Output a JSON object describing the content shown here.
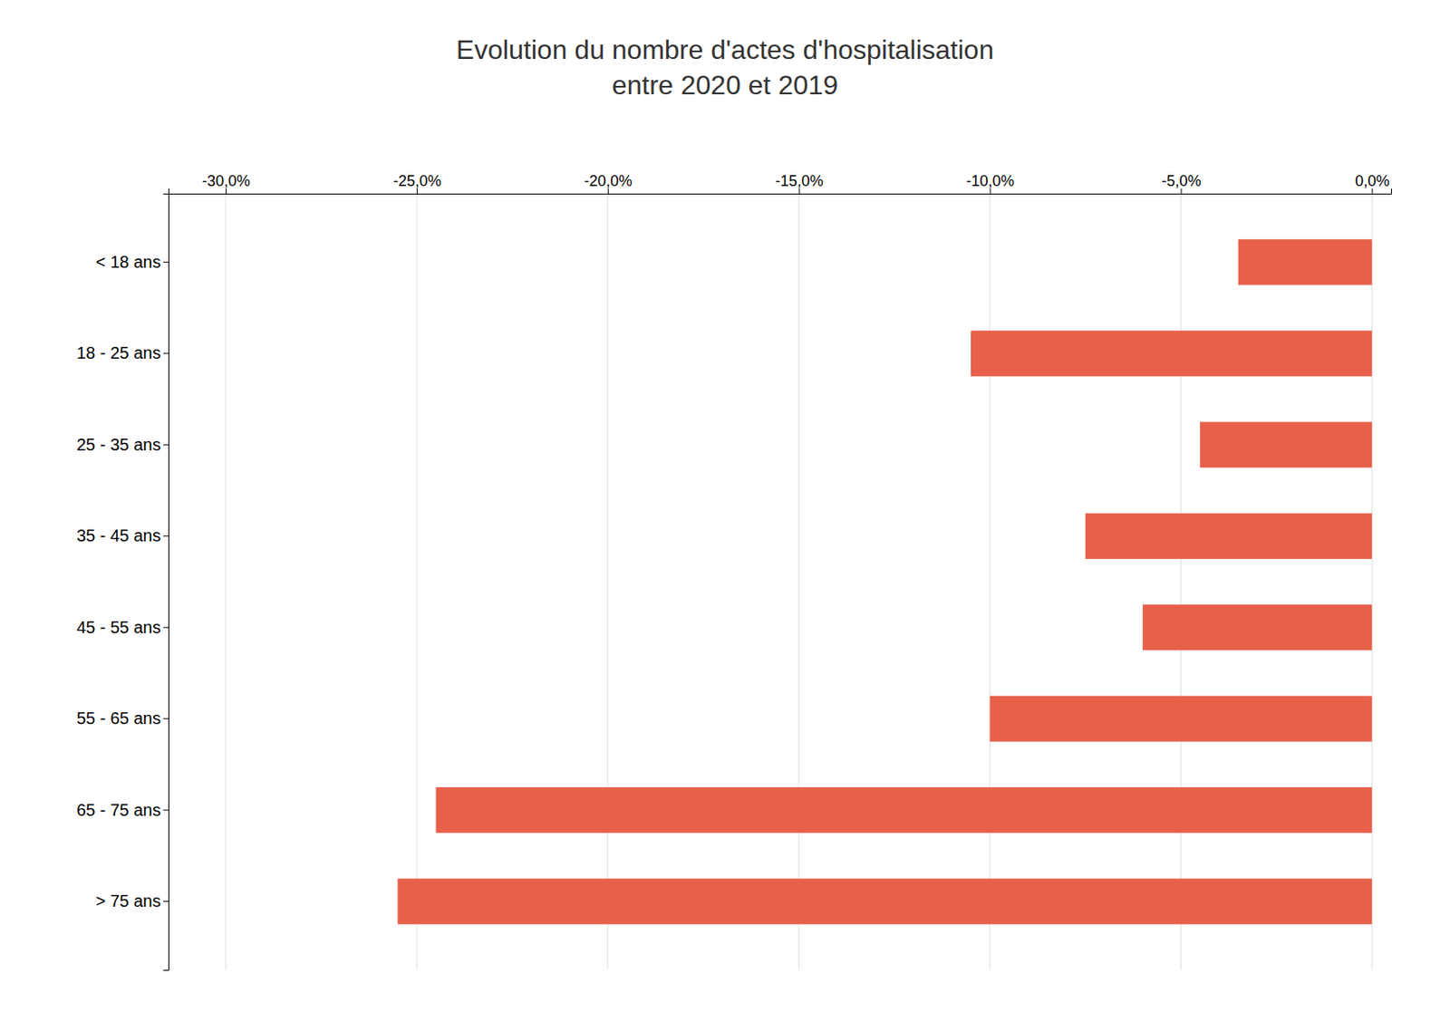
{
  "chart_data": {
    "type": "bar",
    "orientation": "horizontal",
    "title": "Evolution du nombre d'actes d'hospitalisation\nentre 2020 et 2019",
    "categories": [
      "< 18 ans",
      "18 - 25 ans",
      "25 - 35 ans",
      "35 - 45 ans",
      "45 - 55 ans",
      "55 - 65 ans",
      "65 - 75 ans",
      "> 75 ans"
    ],
    "values": [
      -3.5,
      -10.5,
      -4.5,
      -7.5,
      -6.0,
      -10.0,
      -24.5,
      -25.5
    ],
    "color": "#E8604A",
    "xlim": [
      -31.5,
      0.5
    ],
    "xticks": [
      {
        "value": -30,
        "label": "-30,0%"
      },
      {
        "value": -25,
        "label": "-25,0%"
      },
      {
        "value": -20,
        "label": "-20,0%"
      },
      {
        "value": -15,
        "label": "-15,0%"
      },
      {
        "value": -10,
        "label": "-10,0%"
      },
      {
        "value": -5,
        "label": "-5,0%"
      },
      {
        "value": 0,
        "label": "0,0%"
      }
    ],
    "grid": true
  }
}
